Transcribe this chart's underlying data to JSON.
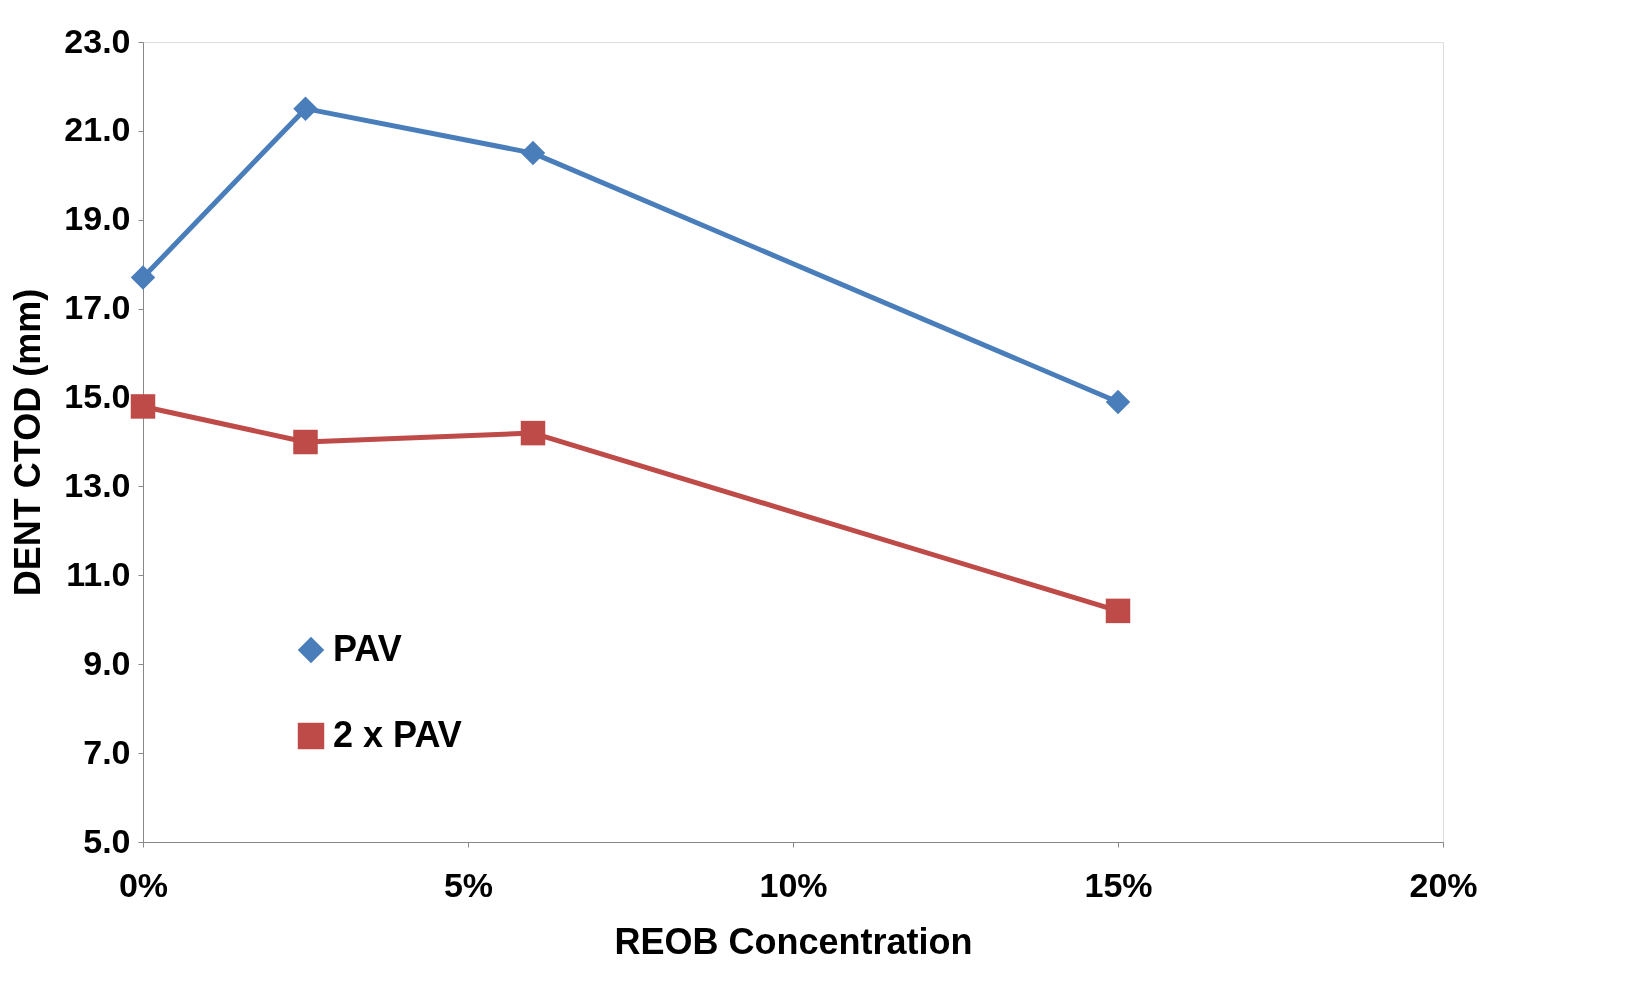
{
  "chart_data": {
    "type": "line",
    "xlabel": "REOB Concentration",
    "ylabel": "DENT CTOD (mm)",
    "x": [
      0,
      0.025,
      0.06,
      0.15
    ],
    "series": [
      {
        "name": "PAV",
        "color": "#4a7ebb",
        "marker": "diamond",
        "values": [
          17.7,
          21.5,
          20.5,
          14.9
        ]
      },
      {
        "name": "2 x PAV",
        "color": "#be4b48",
        "marker": "square",
        "values": [
          14.8,
          14.0,
          14.2,
          10.2
        ]
      }
    ],
    "xlim": [
      0,
      0.2
    ],
    "xticks": [
      {
        "value": 0,
        "label": "0%"
      },
      {
        "value": 0.05,
        "label": "5%"
      },
      {
        "value": 0.1,
        "label": "10%"
      },
      {
        "value": 0.15,
        "label": "15%"
      },
      {
        "value": 0.2,
        "label": "20%"
      }
    ],
    "ylim": [
      5,
      23
    ],
    "yticks": [
      {
        "value": 5,
        "label": "5.0"
      },
      {
        "value": 7,
        "label": "7.0"
      },
      {
        "value": 9,
        "label": "9.0"
      },
      {
        "value": 11,
        "label": "11.0"
      },
      {
        "value": 13,
        "label": "13.0"
      },
      {
        "value": 15,
        "label": "15.0"
      },
      {
        "value": 17,
        "label": "17.0"
      },
      {
        "value": 19,
        "label": "19.0"
      },
      {
        "value": 21,
        "label": "21.0"
      },
      {
        "value": 23,
        "label": "23.0"
      }
    ],
    "grid": false,
    "legend": "bottom left",
    "line_style": "solid"
  }
}
